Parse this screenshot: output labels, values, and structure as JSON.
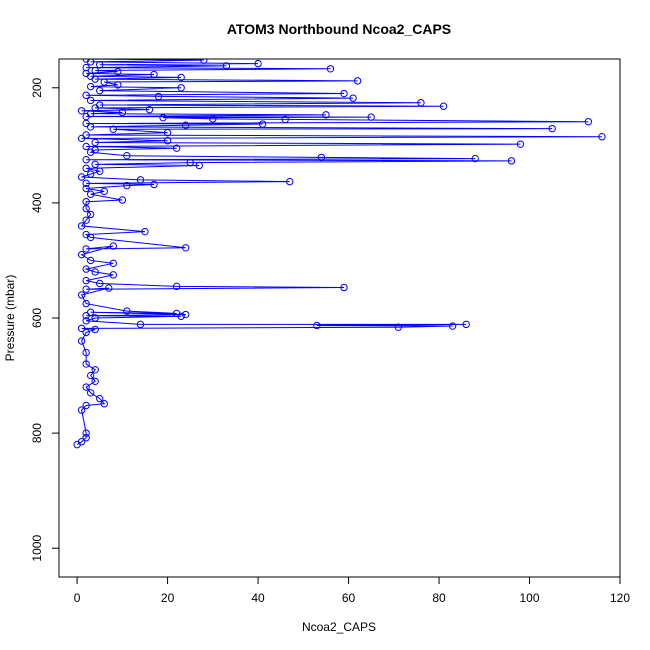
{
  "chart_data": {
    "type": "line",
    "title": "ATOM3 Northbound Ncoa2_CAPS",
    "xlabel": "Ncoa2_CAPS",
    "ylabel": "Pressure (mbar)",
    "xlim": [
      -4,
      120
    ],
    "ylim": [
      1050,
      150
    ],
    "y_reversed": true,
    "x_ticks": [
      0,
      20,
      40,
      60,
      80,
      100,
      120
    ],
    "y_ticks": [
      200,
      400,
      600,
      800,
      1000
    ],
    "grid": false,
    "legend": "none",
    "marker": "open-circle",
    "series_color": "#0000ff",
    "series": [
      {
        "points": [
          [
            2,
            150
          ],
          [
            28,
            152
          ],
          [
            3,
            155
          ],
          [
            40,
            158
          ],
          [
            5,
            160
          ],
          [
            33,
            162
          ],
          [
            2,
            165
          ],
          [
            56,
            167
          ],
          [
            4,
            170
          ],
          [
            9,
            172
          ],
          [
            2,
            175
          ],
          [
            17,
            177
          ],
          [
            3,
            180
          ],
          [
            23,
            182
          ],
          [
            4,
            185
          ],
          [
            62,
            188
          ],
          [
            6,
            190
          ],
          [
            9,
            195
          ],
          [
            3,
            198
          ],
          [
            23,
            200
          ],
          [
            5,
            205
          ],
          [
            59,
            210
          ],
          [
            2,
            213
          ],
          [
            18,
            215
          ],
          [
            61,
            218
          ],
          [
            3,
            222
          ],
          [
            76,
            226
          ],
          [
            5,
            230
          ],
          [
            81,
            232
          ],
          [
            4,
            235
          ],
          [
            16,
            238
          ],
          [
            1,
            240
          ],
          [
            10,
            243
          ],
          [
            3,
            245
          ],
          [
            55,
            247
          ],
          [
            2,
            250
          ],
          [
            65,
            251
          ],
          [
            19,
            252
          ],
          [
            30,
            254
          ],
          [
            46,
            255
          ],
          [
            113,
            259
          ],
          [
            2,
            262
          ],
          [
            41,
            263
          ],
          [
            24,
            265
          ],
          [
            3,
            268
          ],
          [
            105,
            271
          ],
          [
            8,
            272
          ],
          [
            20,
            278
          ],
          [
            2,
            282
          ],
          [
            116,
            285
          ],
          [
            1,
            288
          ],
          [
            20,
            292
          ],
          [
            4,
            295
          ],
          [
            98,
            298
          ],
          [
            2,
            302
          ],
          [
            22,
            305
          ],
          [
            4,
            308
          ],
          [
            3,
            312
          ],
          [
            11,
            318
          ],
          [
            54,
            321
          ],
          [
            88,
            323
          ],
          [
            2,
            325
          ],
          [
            96,
            327
          ],
          [
            25,
            330
          ],
          [
            4,
            333
          ],
          [
            27,
            335
          ],
          [
            2,
            340
          ],
          [
            5,
            345
          ],
          [
            3,
            350
          ],
          [
            1,
            355
          ],
          [
            14,
            360
          ],
          [
            47,
            363
          ],
          [
            2,
            366
          ],
          [
            17,
            368
          ],
          [
            11,
            370
          ],
          [
            2,
            375
          ],
          [
            6,
            380
          ],
          [
            3,
            385
          ],
          [
            10,
            395
          ],
          [
            2,
            398
          ],
          [
            2,
            410
          ],
          [
            3,
            420
          ],
          [
            2,
            430
          ],
          [
            1,
            440
          ],
          [
            15,
            450
          ],
          [
            2,
            455
          ],
          [
            3,
            460
          ],
          [
            24,
            478
          ],
          [
            2,
            480
          ],
          [
            8,
            475
          ],
          [
            1,
            490
          ],
          [
            3,
            500
          ],
          [
            8,
            505
          ],
          [
            2,
            515
          ],
          [
            4,
            520
          ],
          [
            8,
            525
          ],
          [
            2,
            535
          ],
          [
            5,
            540
          ],
          [
            22,
            545
          ],
          [
            59,
            547
          ],
          [
            2,
            550
          ],
          [
            7,
            548
          ],
          [
            1,
            560
          ],
          [
            2,
            575
          ],
          [
            11,
            588
          ],
          [
            22,
            592
          ],
          [
            3,
            590
          ],
          [
            24,
            594
          ],
          [
            2,
            596
          ],
          [
            23,
            597
          ],
          [
            4,
            600
          ],
          [
            2,
            605
          ],
          [
            14,
            611
          ],
          [
            86,
            611
          ],
          [
            53,
            613
          ],
          [
            83,
            614
          ],
          [
            71,
            616
          ],
          [
            1,
            618
          ],
          [
            4,
            620
          ],
          [
            2,
            625
          ],
          [
            1,
            640
          ],
          [
            2,
            660
          ],
          [
            2,
            680
          ],
          [
            4,
            690
          ],
          [
            3,
            700
          ],
          [
            4,
            710
          ],
          [
            2,
            720
          ],
          [
            3,
            730
          ],
          [
            5,
            740
          ],
          [
            6,
            749
          ],
          [
            2,
            752
          ],
          [
            1,
            760
          ],
          [
            2,
            800
          ],
          [
            2,
            808
          ],
          [
            1,
            815
          ],
          [
            0,
            820
          ]
        ]
      }
    ]
  }
}
